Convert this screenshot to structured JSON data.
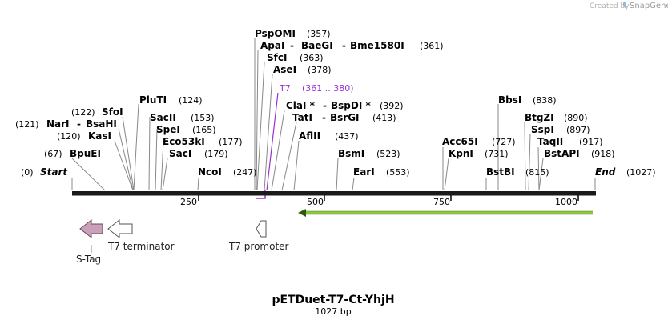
{
  "watermark": {
    "prefix": "Created by",
    "brand": "SnapGene"
  },
  "plasmid": {
    "name": "pETDuet-T7-Ct-YhjH",
    "length_label": "1027 bp",
    "length": 1027
  },
  "ends": {
    "start": {
      "label": "Start",
      "pos": "(0)"
    },
    "end": {
      "label": "End",
      "pos": "(1027)"
    }
  },
  "ruler": {
    "ticks": [
      "250",
      "500",
      "750",
      "1000"
    ]
  },
  "sites": [
    {
      "name": "PspOMI",
      "pos": "(357)"
    },
    {
      "name": "ApaI",
      "pos": "(361)"
    },
    {
      "name": "BaeGI",
      "pos": "(361)"
    },
    {
      "name": "Bme1580I",
      "pos": "(361)"
    },
    {
      "name": "SfcI",
      "pos": "(363)"
    },
    {
      "name": "AseI",
      "pos": "(378)"
    },
    {
      "name": "ClaI *",
      "pos": "(392)"
    },
    {
      "name": "BspDI *",
      "pos": "(392)"
    },
    {
      "name": "TatI",
      "pos": "(413)"
    },
    {
      "name": "BsrGI",
      "pos": "(413)"
    },
    {
      "name": "AflII",
      "pos": "(437)"
    },
    {
      "name": "PluTI",
      "pos": "(124)"
    },
    {
      "name": "SfoI",
      "pos": "(122)"
    },
    {
      "name": "NarI",
      "pos": "(121)"
    },
    {
      "name": "BsaHI",
      "pos": "(121)"
    },
    {
      "name": "KasI",
      "pos": "(120)"
    },
    {
      "name": "BpuEI",
      "pos": "(67)"
    },
    {
      "name": "SacII",
      "pos": "(153)"
    },
    {
      "name": "SpeI",
      "pos": "(165)"
    },
    {
      "name": "Eco53kI",
      "pos": "(177)"
    },
    {
      "name": "SacI",
      "pos": "(179)"
    },
    {
      "name": "NcoI",
      "pos": "(247)"
    },
    {
      "name": "BsmI",
      "pos": "(523)"
    },
    {
      "name": "EarI",
      "pos": "(553)"
    },
    {
      "name": "Acc65I",
      "pos": "(727)"
    },
    {
      "name": "KpnI",
      "pos": "(731)"
    },
    {
      "name": "BstBI",
      "pos": "(815)"
    },
    {
      "name": "BbsI",
      "pos": "(838)"
    },
    {
      "name": "BtgZI",
      "pos": "(890)"
    },
    {
      "name": "SspI",
      "pos": "(897)"
    },
    {
      "name": "TaqII",
      "pos": "(917)"
    },
    {
      "name": "BstAPI",
      "pos": "(918)"
    }
  ],
  "primer": {
    "name": "T7",
    "range": "(361 .. 380)",
    "color": "#9b30d0"
  },
  "features": [
    {
      "name": "S-Tag",
      "color": "#c8a0b8"
    },
    {
      "name": "T7 terminator",
      "color": "#ffffff"
    },
    {
      "name": "T7 promoter",
      "color": "#ffffff"
    }
  ],
  "orf": {
    "color": "#8cc63f"
  },
  "colors": {
    "backbone": "#1a1a1a",
    "stub": "#888888"
  }
}
